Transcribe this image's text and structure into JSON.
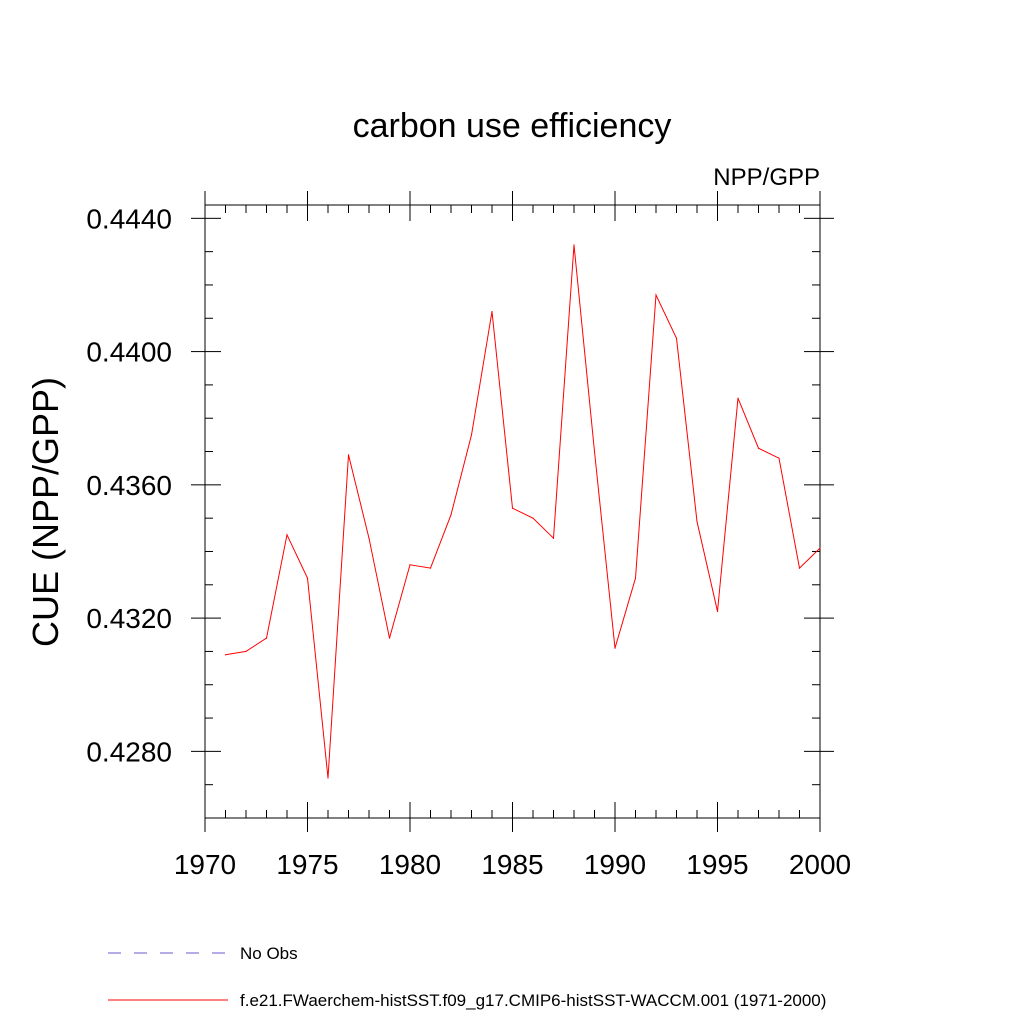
{
  "chart_data": {
    "type": "line",
    "title": "carbon use efficiency",
    "subtitle": "NPP/GPP",
    "xlabel": "",
    "ylabel": "CUE  (NPP/GPP)",
    "xlim": [
      1970,
      2000
    ],
    "ylim": [
      0.426,
      0.4444
    ],
    "x_ticks": [
      "1970",
      "1975",
      "1980",
      "1985",
      "1990",
      "1995",
      "2000"
    ],
    "y_ticks": [
      "0.4280",
      "0.4320",
      "0.4360",
      "0.4400",
      "0.4440"
    ],
    "grid": false,
    "legend": "bottom",
    "series": [
      {
        "name": "f.e21.FWaerchem-histSST.f09_g17.CMIP6-histSST-WACCM.001 (1971-2000)",
        "color": "#ff0000",
        "style": "solid",
        "x": [
          1971,
          1972,
          1973,
          1974,
          1975,
          1976,
          1977,
          1978,
          1979,
          1980,
          1981,
          1982,
          1983,
          1984,
          1985,
          1986,
          1987,
          1988,
          1989,
          1990,
          1991,
          1992,
          1993,
          1994,
          1995,
          1996,
          1997,
          1998,
          1999,
          2000
        ],
        "y": [
          0.4309,
          0.431,
          0.4314,
          0.4345,
          0.4332,
          0.4272,
          0.4369,
          0.4344,
          0.4314,
          0.4336,
          0.4335,
          0.4351,
          0.4375,
          0.4412,
          0.4353,
          0.435,
          0.4344,
          0.4432,
          0.437,
          0.4311,
          0.4332,
          0.4417,
          0.4404,
          0.4349,
          0.4322,
          0.4386,
          0.4371,
          0.4368,
          0.4335,
          0.4341
        ]
      },
      {
        "name": "No Obs",
        "color": "#6a5acd",
        "style": "dashed",
        "x": [],
        "y": []
      }
    ]
  }
}
